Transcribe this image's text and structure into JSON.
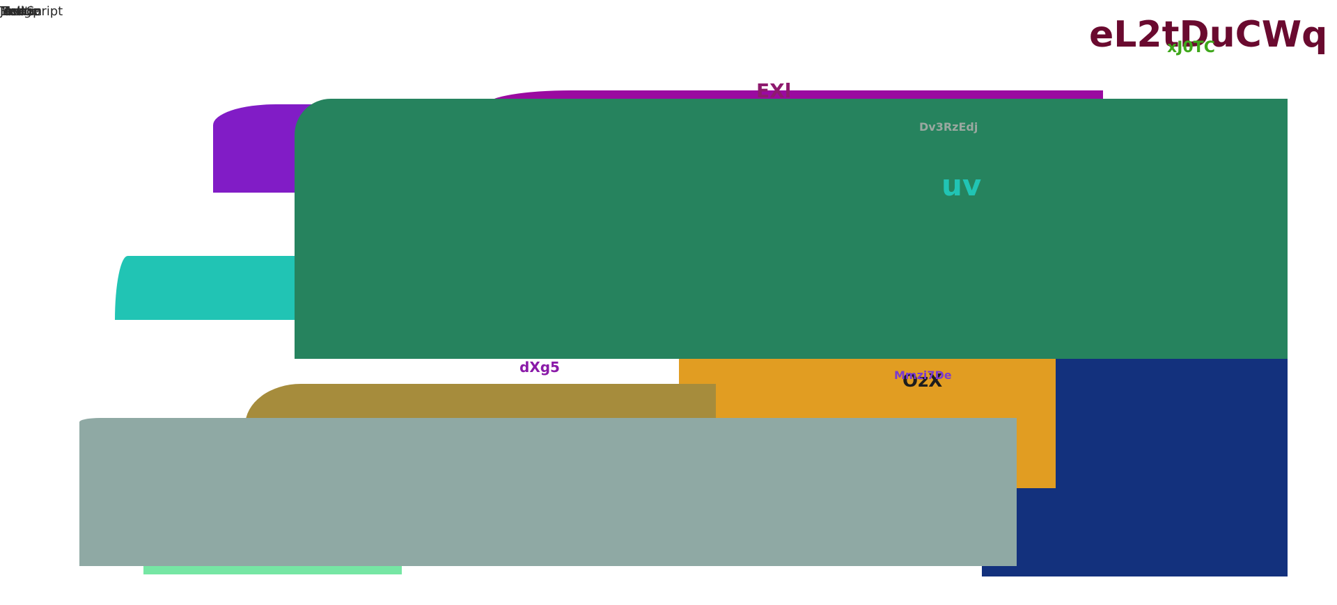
{
  "top_left": {
    "labels": [
      "Hello",
      "Button",
      "Menu",
      "JavaScript",
      "Image",
      "Tooltip"
    ]
  },
  "headline": {
    "title": "eL2tDuCWq",
    "subtitle": "xJ0TC"
  },
  "labels": {
    "exl": "EXl",
    "dv": "Dv3RzEdj",
    "uv": "uv",
    "ozx": "OzX",
    "mm": "Mmzi7De",
    "dxg": "dXg5"
  },
  "colors": {
    "purple": "#811cc6",
    "magenta": "#9a0aa0",
    "teal": "#21c4b4",
    "green": "#26835e",
    "navy": "#13317d",
    "orange": "#e19d22",
    "olive": "#a68c3c",
    "mint": "#76e6a4",
    "sage": "#8fa9a4",
    "headline": "#6a0a2f"
  }
}
